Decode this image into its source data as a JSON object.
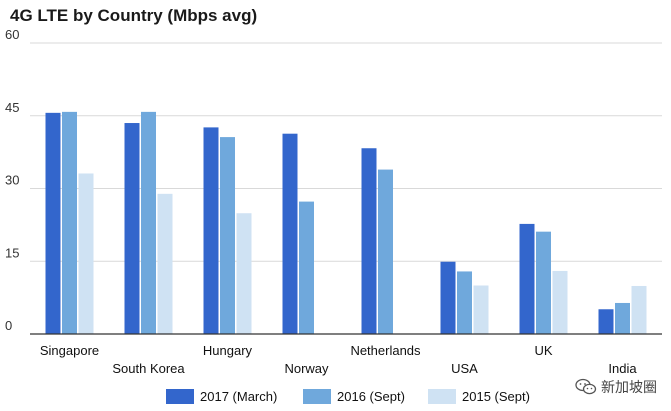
{
  "chart_data": {
    "type": "bar",
    "title": "4G LTE by Country (Mbps avg)",
    "xlabel": "",
    "ylabel": "",
    "ylim": [
      0,
      60
    ],
    "yticks": [
      0,
      15,
      30,
      45,
      60
    ],
    "grid": true,
    "legend_position": "bottom",
    "categories": [
      "Singapore",
      "South Korea",
      "Hungary",
      "Norway",
      "Netherlands",
      "USA",
      "UK",
      "India"
    ],
    "series": [
      {
        "name": "2017 (March)",
        "color": "#3366cc",
        "values": [
          45.6,
          43.5,
          42.6,
          41.3,
          38.3,
          14.9,
          22.7,
          5.1
        ]
      },
      {
        "name": "2016 (Sept)",
        "color": "#6fa8dc",
        "values": [
          45.8,
          45.8,
          40.6,
          27.3,
          33.9,
          12.9,
          21.1,
          6.4
        ]
      },
      {
        "name": "2015 (Sept)",
        "color": "#cfe2f3",
        "values": [
          33.1,
          28.9,
          24.9,
          null,
          null,
          10.0,
          13.0,
          9.9
        ]
      }
    ]
  },
  "watermark": {
    "text": "新加坡圈",
    "icon": "wechat-icon"
  }
}
